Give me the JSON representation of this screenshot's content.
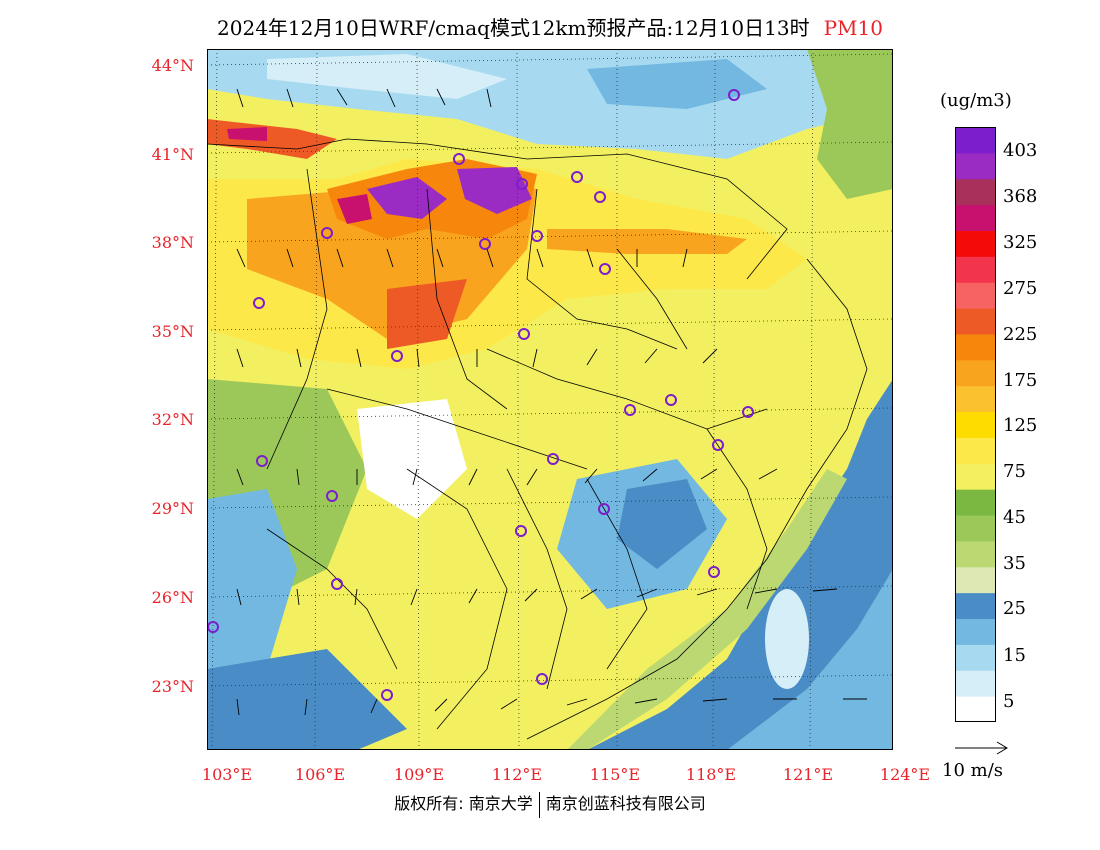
{
  "title": {
    "main": "2024年12月10日WRF/cmaq模式12km预报产品:12月10日13时",
    "variable": "PM10"
  },
  "axes": {
    "lat_labels": [
      "44°N",
      "41°N",
      "38°N",
      "35°N",
      "32°N",
      "29°N",
      "26°N",
      "23°N"
    ],
    "lon_labels": [
      "103°E",
      "106°E",
      "109°E",
      "112°E",
      "115°E",
      "118°E",
      "121°E",
      "124°E"
    ]
  },
  "colorbar": {
    "unit": "(ug/m3)",
    "labels": [
      "403",
      "368",
      "325",
      "275",
      "225",
      "175",
      "125",
      "75",
      "45",
      "35",
      "25",
      "15",
      "5"
    ],
    "colors": [
      "#ffffff",
      "#d6eef8",
      "#a7daf0",
      "#72b8e0",
      "#4a8cc6",
      "#dde8b4",
      "#bbd872",
      "#9cc85a",
      "#7bb842",
      "#f2f060",
      "#fde84a",
      "#fedc00",
      "#fbc12e",
      "#f9a41e",
      "#f7870c",
      "#ee5a25",
      "#f76363",
      "#f2344c",
      "#f50a0a",
      "#c8106e",
      "#a8305a",
      "#9a2cc4",
      "#7c1ecc"
    ]
  },
  "vector_reference": {
    "label": "10 m/s"
  },
  "copyright": {
    "left": "版权所有: 南京大学",
    "right": "南京创蓝科技有限公司"
  },
  "map_colors": {
    "sea_deep": "#4a8cc6",
    "land_clean": "#ffffff",
    "moderate": "#f2f060",
    "high": "#fde84a",
    "very_high": "#f7870c",
    "extreme": "#9a2cc4"
  }
}
